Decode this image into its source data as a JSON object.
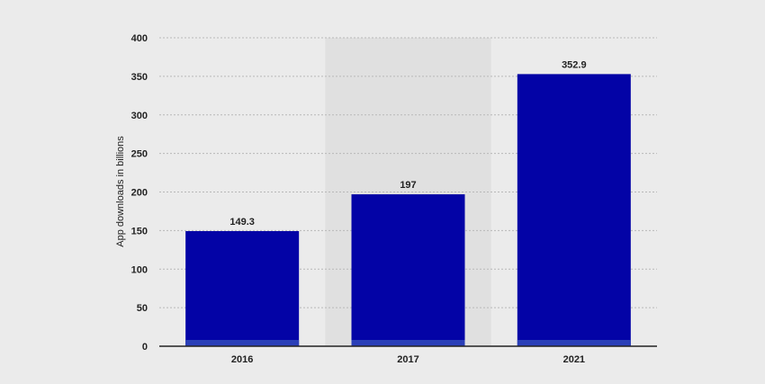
{
  "chart_data": {
    "type": "bar",
    "categories": [
      "2016",
      "2017",
      "2021"
    ],
    "values": [
      149.3,
      197,
      352.9
    ],
    "value_labels": [
      "149.3",
      "197",
      "352.9"
    ],
    "title": "",
    "xlabel": "",
    "ylabel": "App downloads in billions",
    "ylim": [
      0,
      400
    ],
    "yticks": [
      0,
      50,
      100,
      150,
      200,
      250,
      300,
      350,
      400
    ],
    "grid": true,
    "highlighted_category": "2017",
    "colors": {
      "bar": "#0303a6",
      "bar_base": "#2a3fb8",
      "grid": "#b8b8b8",
      "axis": "#222222",
      "highlight_band": "#e0e0e0",
      "background": "#ebebeb"
    }
  }
}
